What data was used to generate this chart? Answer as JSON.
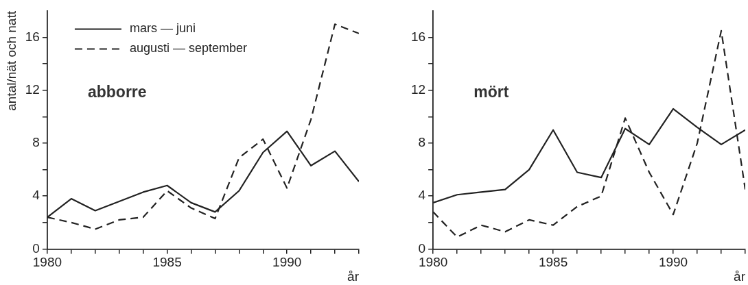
{
  "chart_data": [
    {
      "type": "line",
      "title": "abborre",
      "ylabel": "antal/nät och natt",
      "xlabel": "år",
      "x": [
        1980,
        1981,
        1982,
        1983,
        1984,
        1985,
        1986,
        1987,
        1988,
        1989,
        1990,
        1991,
        1992,
        1993
      ],
      "xlim": [
        1980,
        1993
      ],
      "xticks": [
        1980,
        {
          "value": 1981,
          "label": null
        },
        {
          "value": 1982,
          "label": null
        },
        {
          "value": 1983,
          "label": null
        },
        {
          "value": 1984,
          "label": null
        },
        1985,
        {
          "value": 1986,
          "label": null
        },
        {
          "value": 1987,
          "label": null
        },
        {
          "value": 1988,
          "label": null
        },
        {
          "value": 1989,
          "label": null
        },
        1990,
        {
          "value": 1991,
          "label": null
        },
        {
          "value": 1992,
          "label": null
        },
        {
          "value": 1993,
          "label": null
        }
      ],
      "ylim": [
        0,
        18
      ],
      "yticks": [
        0,
        {
          "value": 2,
          "label": null
        },
        4,
        {
          "value": 6,
          "label": null
        },
        8,
        {
          "value": 10,
          "label": null
        },
        12,
        {
          "value": 14,
          "label": null
        },
        16
      ],
      "grid": false,
      "legend": "top left",
      "marker": "none",
      "series": [
        {
          "name": "mars — juni",
          "color": "#222222",
          "line_style": "solid",
          "values": [
            2.4,
            3.8,
            2.9,
            3.6,
            4.3,
            4.8,
            3.5,
            2.8,
            4.4,
            7.3,
            8.9,
            6.3,
            7.4,
            5.1
          ]
        },
        {
          "name": "augusti — september",
          "color": "#222222",
          "line_style": "dashed",
          "values": [
            2.4,
            2.0,
            1.5,
            2.2,
            2.4,
            4.4,
            3.1,
            2.3,
            6.9,
            8.3,
            4.6,
            9.8,
            17.0,
            16.3
          ]
        }
      ]
    },
    {
      "type": "line",
      "title": "mört",
      "xlabel": "år",
      "x": [
        1980,
        1981,
        1982,
        1983,
        1984,
        1985,
        1986,
        1987,
        1988,
        1989,
        1990,
        1991,
        1992,
        1993
      ],
      "xlim": [
        1980,
        1993
      ],
      "xticks": [
        1980,
        {
          "value": 1981,
          "label": null
        },
        {
          "value": 1982,
          "label": null
        },
        {
          "value": 1983,
          "label": null
        },
        {
          "value": 1984,
          "label": null
        },
        1985,
        {
          "value": 1986,
          "label": null
        },
        {
          "value": 1987,
          "label": null
        },
        {
          "value": 1988,
          "label": null
        },
        {
          "value": 1989,
          "label": null
        },
        1990,
        {
          "value": 1991,
          "label": null
        },
        {
          "value": 1992,
          "label": null
        },
        {
          "value": 1993,
          "label": null
        }
      ],
      "ylim": [
        0,
        18
      ],
      "yticks": [
        0,
        {
          "value": 2,
          "label": null
        },
        4,
        {
          "value": 6,
          "label": null
        },
        8,
        {
          "value": 10,
          "label": null
        },
        12,
        {
          "value": 14,
          "label": null
        },
        16
      ],
      "grid": false,
      "marker": "none",
      "series": [
        {
          "color": "#222222",
          "line_style": "solid",
          "values": [
            3.5,
            4.1,
            4.3,
            4.5,
            6.0,
            9.0,
            5.8,
            5.4,
            9.1,
            7.9,
            10.6,
            9.2,
            7.9,
            9.0
          ]
        },
        {
          "color": "#222222",
          "line_style": "dashed",
          "values": [
            2.8,
            0.9,
            1.8,
            1.3,
            2.2,
            1.8,
            3.2,
            4.0,
            9.9,
            5.8,
            2.6,
            8.0,
            16.5,
            4.5
          ]
        }
      ]
    }
  ]
}
